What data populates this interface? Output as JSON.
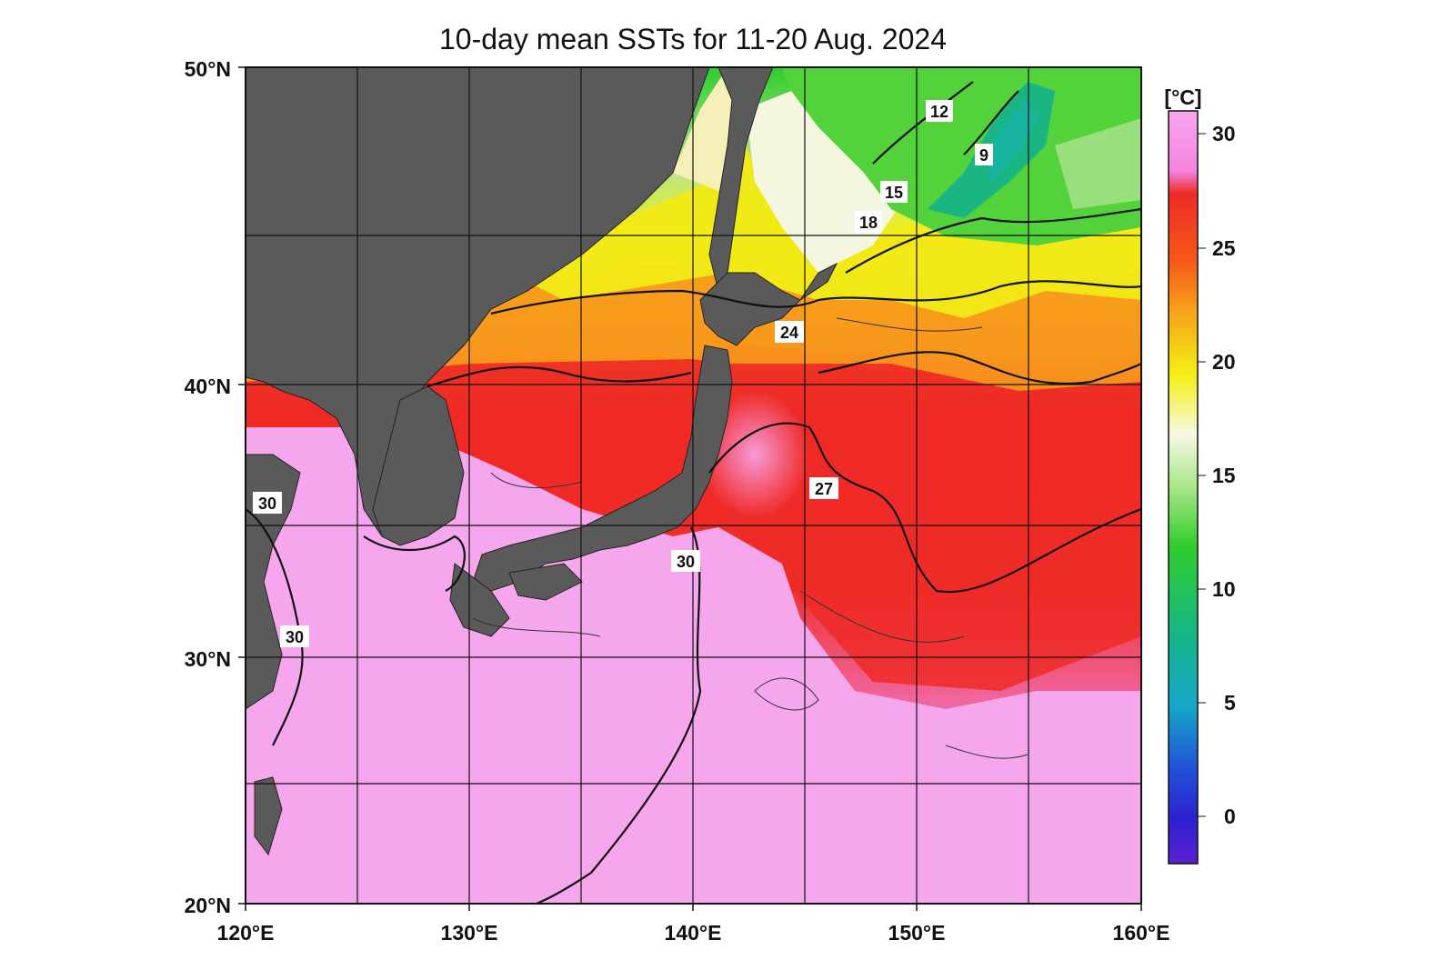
{
  "title": "10-day mean SSTs for 11-20 Aug. 2024",
  "map": {
    "lat_labels": [
      "50°N",
      "40°N",
      "30°N",
      "20°N"
    ],
    "lon_labels": [
      "120°E",
      "130°E",
      "140°E",
      "150°E",
      "160°E"
    ],
    "lon_range": [
      120,
      160
    ],
    "lat_range": [
      20,
      50
    ],
    "contour_labels": [
      "12",
      "9",
      "15",
      "18",
      "24",
      "27",
      "30",
      "30",
      "30"
    ]
  },
  "colorbar": {
    "unit": "[°C]",
    "ticks": [
      "30",
      "25",
      "20",
      "15",
      "10",
      "5",
      "0"
    ],
    "range": [
      -2,
      31
    ],
    "colors": {
      "pink_warm": "#f6a6ec",
      "red": "#ee2222",
      "orange": "#f7a019",
      "yellow": "#f2ee10",
      "pale": "#f6f7e4",
      "green": "#32cc2c",
      "teal": "#16b59a",
      "blue": "#1e5bd4",
      "violet": "#5b1ccf",
      "land": "#585858"
    }
  }
}
